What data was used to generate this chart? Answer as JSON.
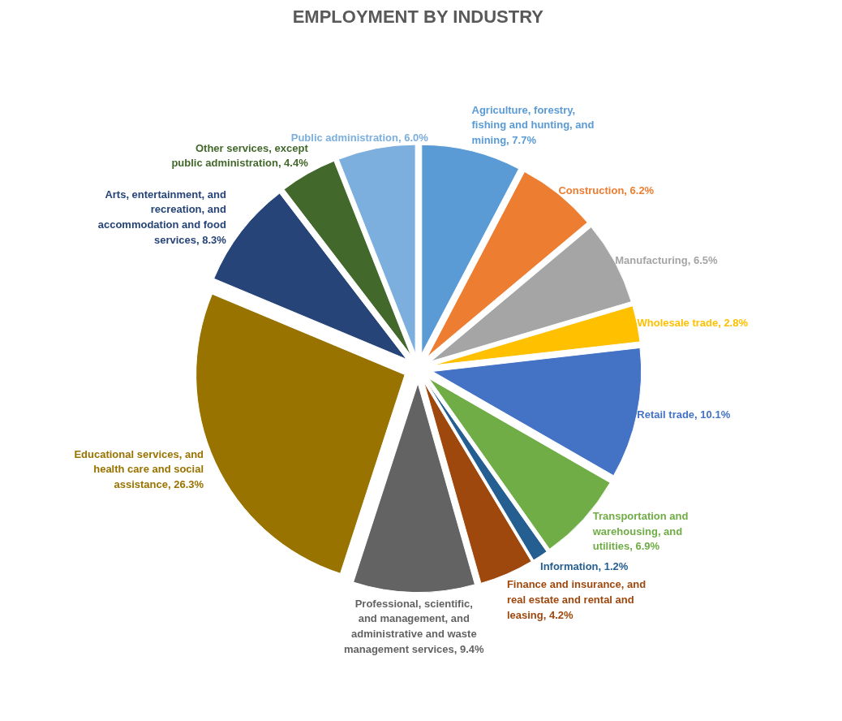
{
  "chart_data": {
    "type": "pie",
    "title": "EMPLOYMENT BY INDUSTRY",
    "categories": [
      "Agriculture, forestry, fishing and hunting, and mining",
      "Construction",
      "Manufacturing",
      "Wholesale trade",
      "Retail trade",
      "Transportation and warehousing, and utilities",
      "Information",
      "Finance and insurance, and real estate and rental and leasing",
      "Professional, scientific, and management, and administrative and waste management services",
      "Educational services, and health care and social assistance",
      "Arts, entertainment, and recreation, and accommodation and food services",
      "Other services, except public administration",
      "Public administration"
    ],
    "values": [
      7.7,
      6.2,
      6.5,
      2.8,
      10.1,
      6.9,
      1.2,
      4.2,
      9.4,
      26.3,
      8.3,
      4.4,
      6.0
    ],
    "colors": [
      "#5b9bd5",
      "#ed7d31",
      "#a5a5a5",
      "#ffc000",
      "#4472c4",
      "#70ad47",
      "#255e91",
      "#9e480e",
      "#636363",
      "#997300",
      "#264478",
      "#43682b",
      "#7cafdd"
    ],
    "value_labels": [
      "7.7%",
      "6.2%",
      "6.5%",
      "2.8%",
      "10.1%",
      "6.9%",
      "1.2%",
      "4.2%",
      "9.4%",
      "26.3%",
      "8.3%",
      "4.4%",
      "6.0%"
    ]
  }
}
